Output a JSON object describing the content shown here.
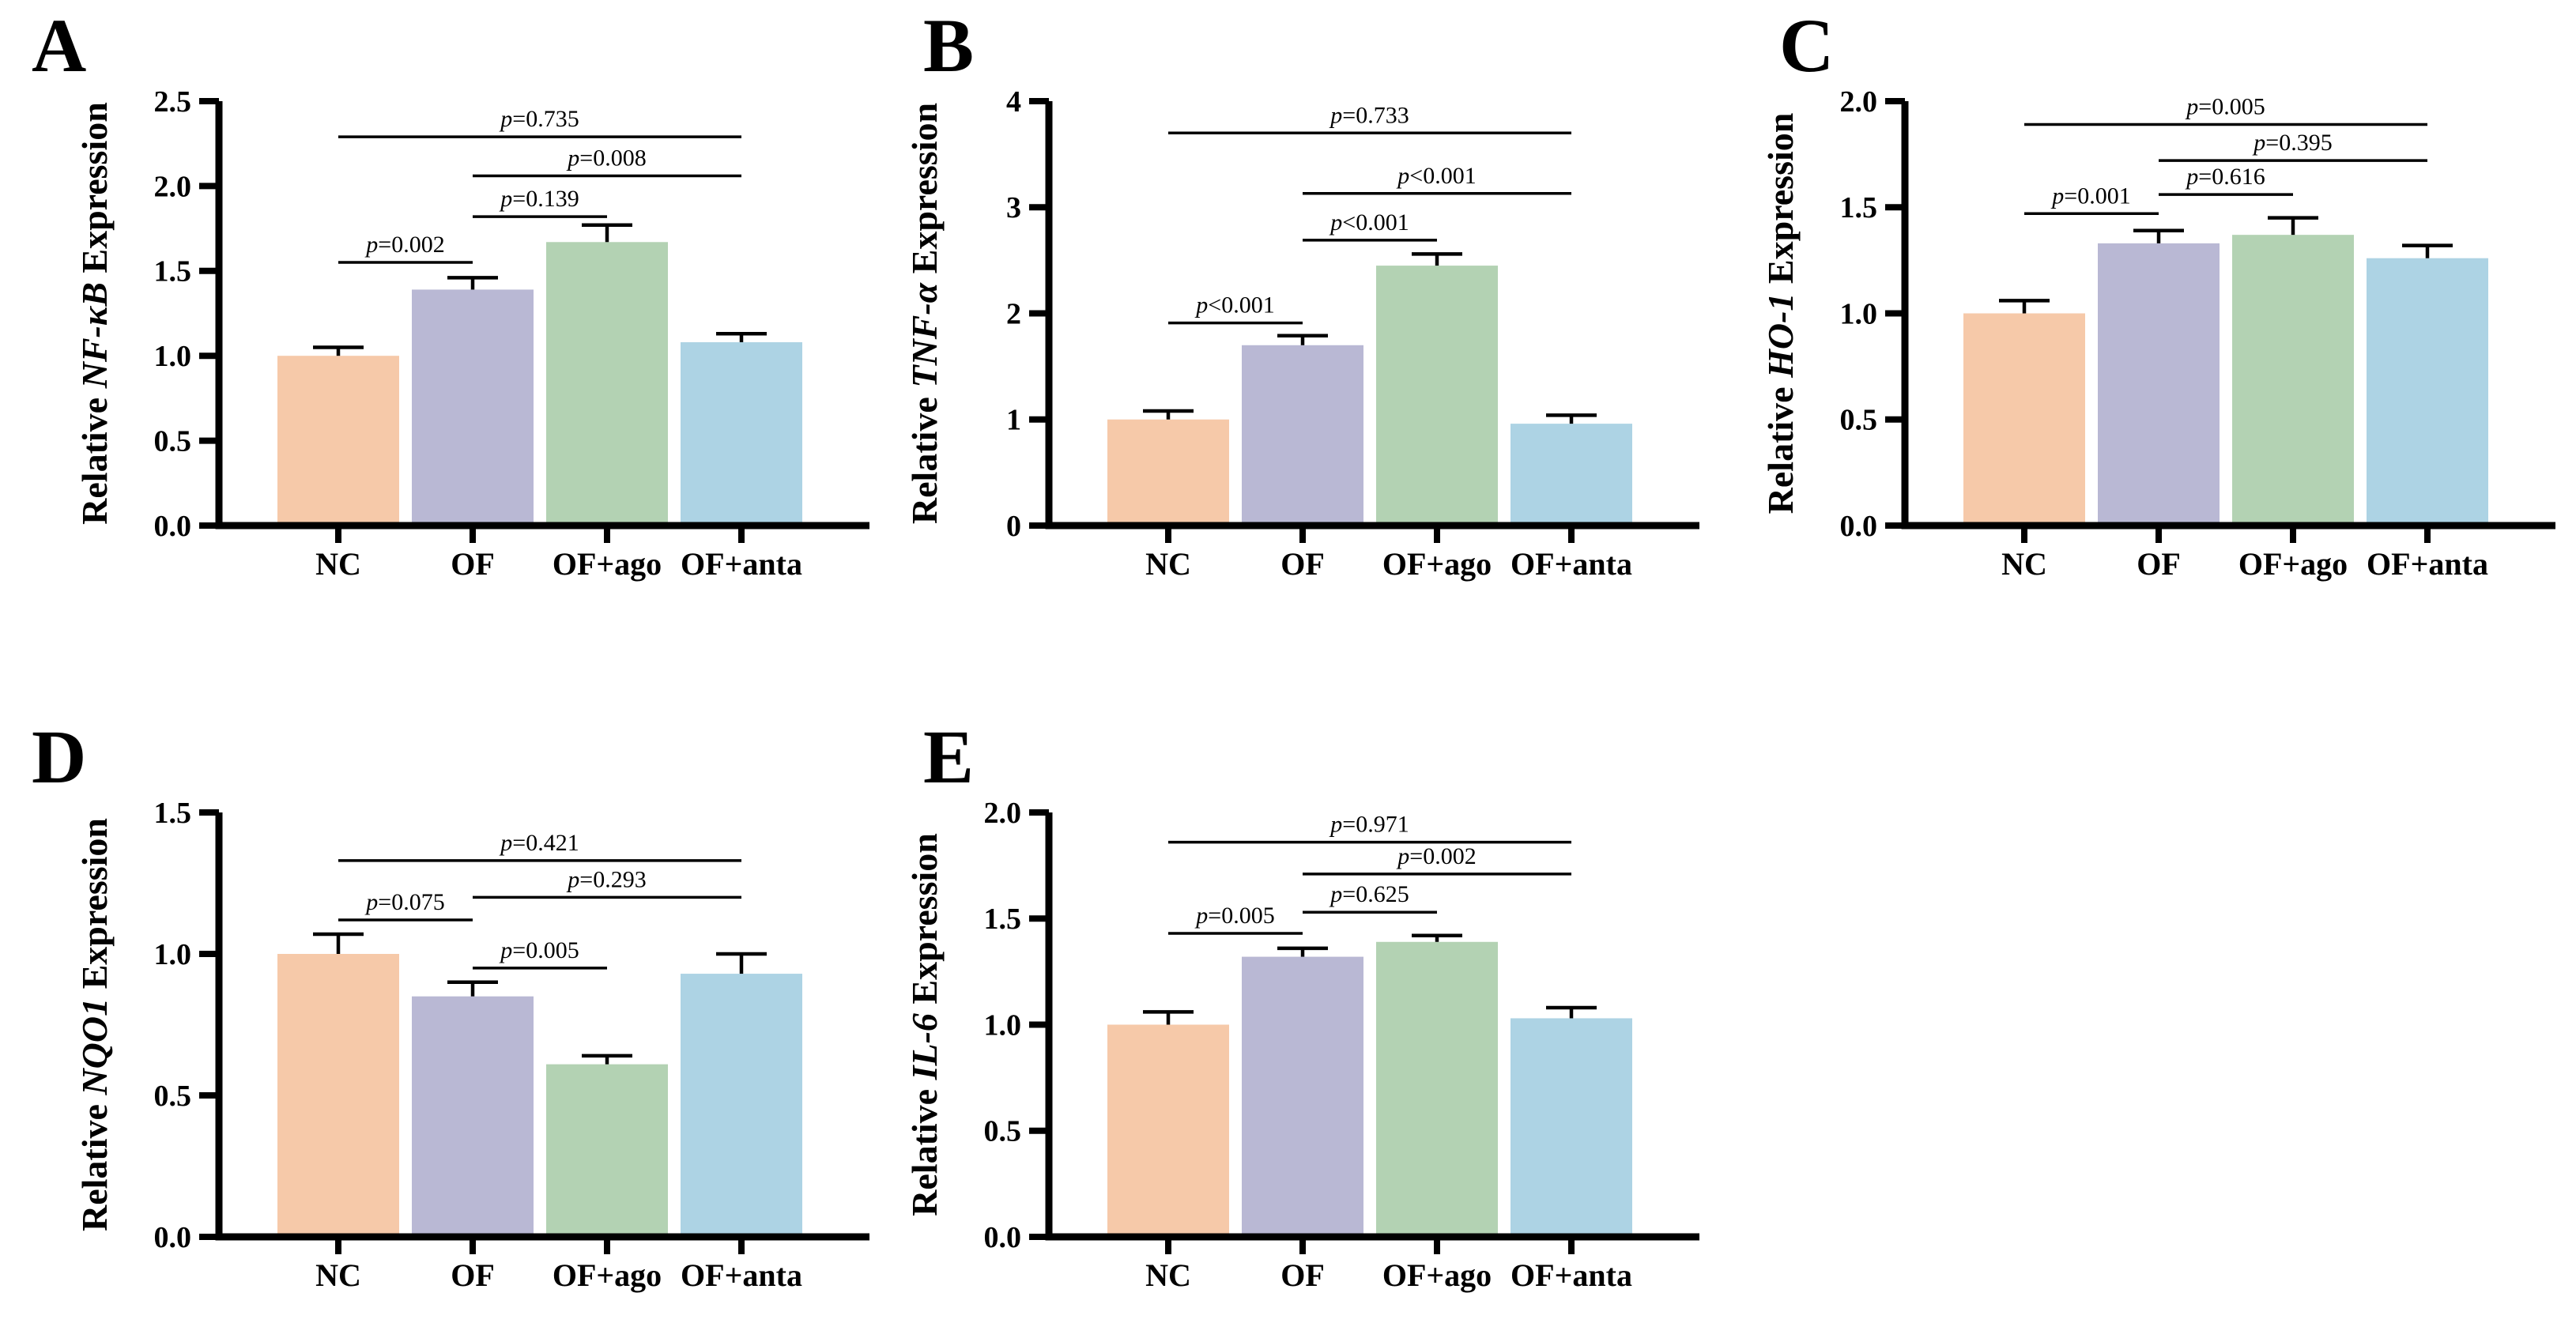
{
  "figure": {
    "background": "#ffffff",
    "axis_color": "#000000",
    "text_color": "#000000",
    "groups": [
      "NC",
      "OF",
      "OF+ago",
      "OF+anta"
    ],
    "bar_colors": [
      "#F6C9A9",
      "#B9B8D4",
      "#B3D2B3",
      "#ADD3E4"
    ]
  },
  "chart_data": [
    {
      "panel": "A",
      "type": "bar",
      "ylabel": "Relative NF-κB Expression",
      "ylabel_prefix": "Relative ",
      "ylabel_italic": "NF-κB",
      "ylabel_suffix": " Expression",
      "categories": [
        "NC",
        "OF",
        "OF+ago",
        "OF+anta"
      ],
      "values": [
        1.0,
        1.39,
        1.67,
        1.08
      ],
      "errors": [
        0.05,
        0.07,
        0.1,
        0.05
      ],
      "ylim": [
        0,
        2.5
      ],
      "ytick_labels": [
        "0.0",
        "0.5",
        "1.0",
        "1.5",
        "2.0",
        "2.5"
      ],
      "comparisons": [
        {
          "from": 0,
          "to": 1,
          "label": "p=0.002",
          "height": 1.55
        },
        {
          "from": 1,
          "to": 2,
          "label": "p=0.139",
          "height": 1.82
        },
        {
          "from": 1,
          "to": 3,
          "label": "p=0.008",
          "height": 2.06
        },
        {
          "from": 0,
          "to": 3,
          "label": "p=0.735",
          "height": 2.29
        }
      ]
    },
    {
      "panel": "B",
      "type": "bar",
      "ylabel": "Relative TNF-α Expression",
      "ylabel_prefix": "Relative ",
      "ylabel_italic": "TNF-α",
      "ylabel_suffix": " Expression",
      "categories": [
        "NC",
        "OF",
        "OF+ago",
        "OF+anta"
      ],
      "values": [
        1.0,
        1.7,
        2.45,
        0.96
      ],
      "errors": [
        0.08,
        0.09,
        0.11,
        0.08
      ],
      "ylim": [
        0,
        4
      ],
      "ytick_labels": [
        "0",
        "1",
        "2",
        "3",
        "4"
      ],
      "comparisons": [
        {
          "from": 0,
          "to": 1,
          "label": "p<0.001",
          "height": 1.91
        },
        {
          "from": 1,
          "to": 2,
          "label": "p<0.001",
          "height": 2.69
        },
        {
          "from": 1,
          "to": 3,
          "label": "p<0.001",
          "height": 3.13
        },
        {
          "from": 0,
          "to": 3,
          "label": "p=0.733",
          "height": 3.7
        }
      ]
    },
    {
      "panel": "C",
      "type": "bar",
      "ylabel": "Relative HO-1 Expression",
      "ylabel_prefix": "Relative ",
      "ylabel_italic": "HO-1",
      "ylabel_suffix": " Expression",
      "categories": [
        "NC",
        "OF",
        "OF+ago",
        "OF+anta"
      ],
      "values": [
        1.0,
        1.33,
        1.37,
        1.26
      ],
      "errors": [
        0.06,
        0.06,
        0.08,
        0.06
      ],
      "ylim": [
        0,
        2
      ],
      "ytick_labels": [
        "0.0",
        "0.5",
        "1.0",
        "1.5",
        "2.0"
      ],
      "comparisons": [
        {
          "from": 0,
          "to": 1,
          "label": "p=0.001",
          "height": 1.47
        },
        {
          "from": 1,
          "to": 2,
          "label": "p=0.616",
          "height": 1.56
        },
        {
          "from": 1,
          "to": 3,
          "label": "p=0.395",
          "height": 1.72
        },
        {
          "from": 0,
          "to": 3,
          "label": "p=0.005",
          "height": 1.89
        }
      ]
    },
    {
      "panel": "D",
      "type": "bar",
      "ylabel": "Relative NQO1 Expression",
      "ylabel_prefix": "Relative ",
      "ylabel_italic": "NQO1",
      "ylabel_suffix": " Expression",
      "categories": [
        "NC",
        "OF",
        "OF+ago",
        "OF+anta"
      ],
      "values": [
        1.0,
        0.85,
        0.61,
        0.93
      ],
      "errors": [
        0.07,
        0.05,
        0.03,
        0.07
      ],
      "ylim": [
        0,
        1.5
      ],
      "ytick_labels": [
        "0.0",
        "0.5",
        "1.0",
        "1.5"
      ],
      "comparisons": [
        {
          "from": 0,
          "to": 1,
          "label": "p=0.075",
          "height": 1.12
        },
        {
          "from": 1,
          "to": 2,
          "label": "p=0.005",
          "height": 0.95
        },
        {
          "from": 1,
          "to": 3,
          "label": "p=0.293",
          "height": 1.2
        },
        {
          "from": 0,
          "to": 3,
          "label": "p=0.421",
          "height": 1.33
        }
      ]
    },
    {
      "panel": "E",
      "type": "bar",
      "ylabel": "Relative IL-6 Expression",
      "ylabel_prefix": "Relative ",
      "ylabel_italic": "IL-6",
      "ylabel_suffix": " Expression",
      "categories": [
        "NC",
        "OF",
        "OF+ago",
        "OF+anta"
      ],
      "values": [
        1.0,
        1.32,
        1.39,
        1.03
      ],
      "errors": [
        0.06,
        0.04,
        0.03,
        0.05
      ],
      "ylim": [
        0,
        2
      ],
      "ytick_labels": [
        "0.0",
        "0.5",
        "1.0",
        "1.5",
        "2.0"
      ],
      "comparisons": [
        {
          "from": 0,
          "to": 1,
          "label": "p=0.005",
          "height": 1.43
        },
        {
          "from": 1,
          "to": 2,
          "label": "p=0.625",
          "height": 1.53
        },
        {
          "from": 1,
          "to": 3,
          "label": "p=0.002",
          "height": 1.71
        },
        {
          "from": 0,
          "to": 3,
          "label": "p=0.971",
          "height": 1.86
        }
      ]
    }
  ]
}
